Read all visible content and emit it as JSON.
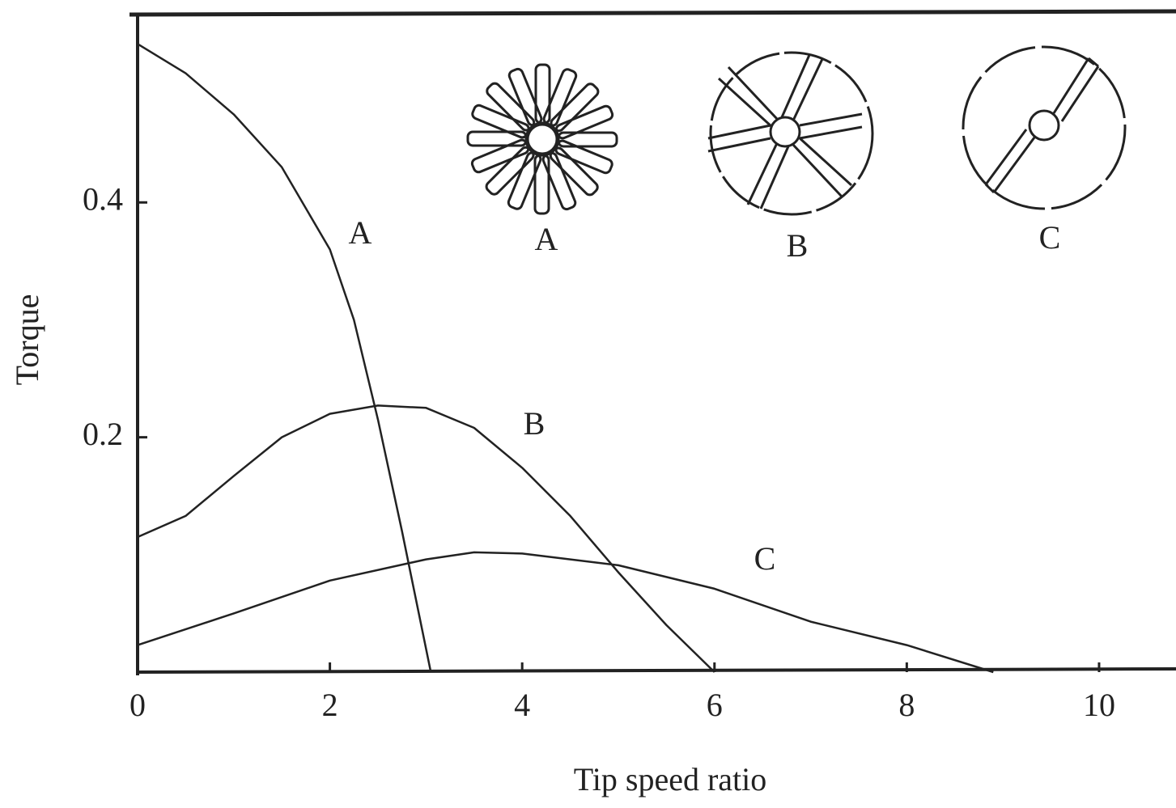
{
  "chart_data": {
    "type": "line",
    "x_label": "Tip speed ratio",
    "y_label": "Torque",
    "xlim": [
      0,
      10.8
    ],
    "ylim": [
      0,
      0.56
    ],
    "xticks": [
      0,
      2,
      4,
      6,
      8,
      10
    ],
    "yticks": [
      0.2,
      0.4
    ],
    "color": "#222222",
    "series": [
      {
        "name": "A",
        "x": [
          0,
          0.5,
          1,
          1.5,
          2,
          2.25,
          2.5,
          2.75,
          3.05
        ],
        "values": [
          0.535,
          0.51,
          0.475,
          0.43,
          0.36,
          0.3,
          0.215,
          0.12,
          0
        ]
      },
      {
        "name": "B",
        "x": [
          0,
          0.5,
          1,
          1.5,
          2,
          2.5,
          3,
          3.5,
          4,
          4.5,
          5,
          5.5,
          6
        ],
        "values": [
          0.115,
          0.133,
          0.167,
          0.2,
          0.22,
          0.227,
          0.225,
          0.208,
          0.174,
          0.133,
          0.085,
          0.04,
          0
        ]
      },
      {
        "name": "C",
        "x": [
          0,
          1,
          2,
          3,
          3.5,
          4,
          5,
          6,
          7,
          8,
          8.9
        ],
        "values": [
          0.023,
          0.05,
          0.078,
          0.096,
          0.102,
          0.101,
          0.091,
          0.071,
          0.043,
          0.023,
          0
        ]
      }
    ]
  }
}
